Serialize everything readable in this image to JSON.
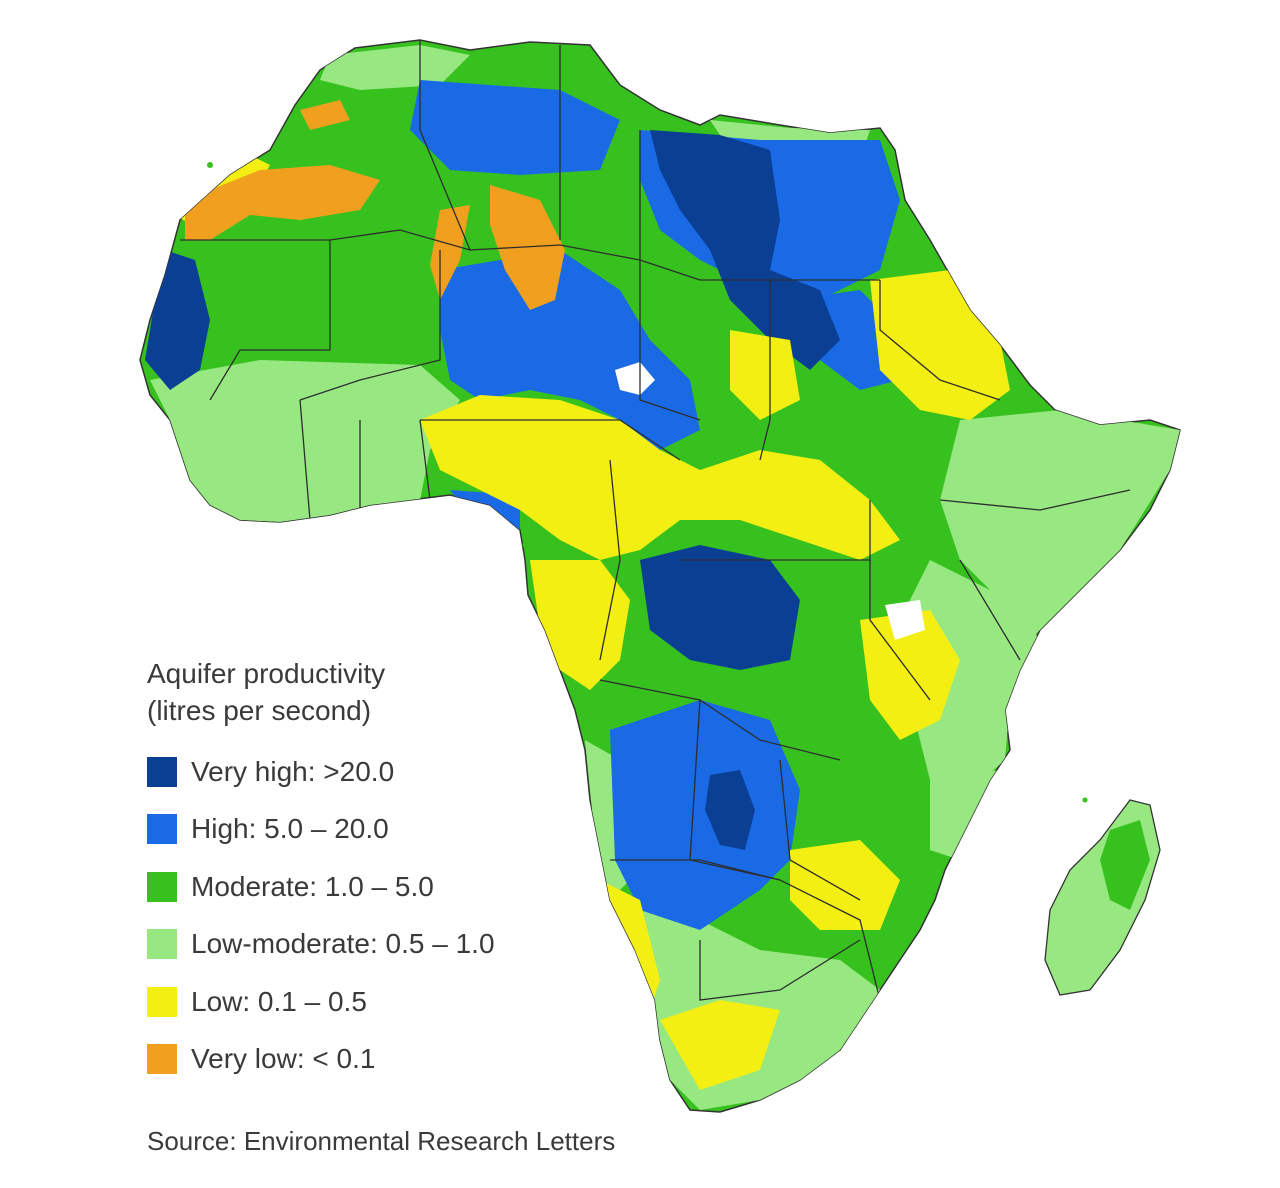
{
  "legend": {
    "title_line1": "Aquifer productivity",
    "title_line2": "(litres per second)",
    "items": [
      {
        "label": "Very high: >20.0",
        "color": "#0a3f93"
      },
      {
        "label": "High: 5.0 – 20.0",
        "color": "#1a6ae6"
      },
      {
        "label": "Moderate: 1.0 – 5.0",
        "color": "#36c11f"
      },
      {
        "label": "Low-moderate: 0.5 – 1.0",
        "color": "#98e882"
      },
      {
        "label": "Low: 0.1 – 0.5",
        "color": "#f4ef12"
      },
      {
        "label": "Very low: < 0.1",
        "color": "#f0a01e"
      }
    ]
  },
  "source": "Source: Environmental Research Letters"
}
